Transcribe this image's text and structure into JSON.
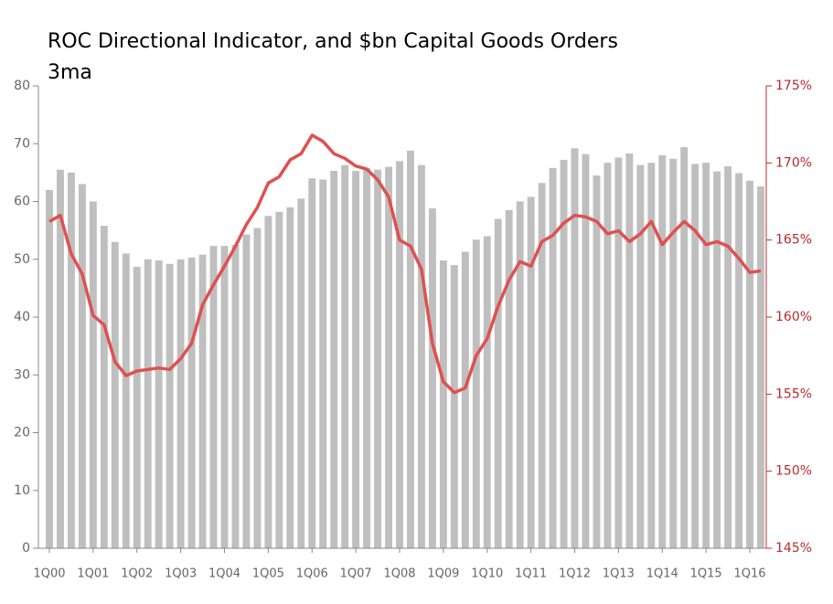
{
  "chart_data": {
    "type": "bar_line",
    "title": "ROC Directional Indicator, and $bn Capital Goods Orders",
    "subtitle": "3ma",
    "categories": [
      "1Q00",
      null,
      null,
      null,
      "1Q01",
      null,
      null,
      null,
      "1Q02",
      null,
      null,
      null,
      "1Q03",
      null,
      null,
      null,
      "1Q04",
      null,
      null,
      null,
      "1Q05",
      null,
      null,
      null,
      "1Q06",
      null,
      null,
      null,
      "1Q07",
      null,
      null,
      null,
      "1Q08",
      null,
      null,
      null,
      "1Q09",
      null,
      null,
      null,
      "1Q10",
      null,
      null,
      null,
      "1Q11",
      null,
      null,
      null,
      "1Q12",
      null,
      null,
      null,
      "1Q13",
      null,
      null,
      null,
      "1Q14",
      null,
      null,
      null,
      "1Q15",
      null,
      null,
      null,
      "1Q16",
      null
    ],
    "series": [
      {
        "type": "bar",
        "color": "#bfbfbf",
        "values": [
          62,
          65.5,
          65,
          63,
          60,
          55.8,
          53,
          51,
          48.7,
          50,
          49.8,
          49.2,
          50,
          50.3,
          50.8,
          52.3,
          52.3,
          52.5,
          54.3,
          55.4,
          57.5,
          58.2,
          59,
          60.5,
          64,
          63.8,
          65.3,
          66.3,
          65.3,
          65.8,
          65.5,
          66,
          67,
          68.8,
          66.3,
          58.8,
          49.8,
          49,
          51.3,
          53.4,
          54,
          57,
          58.5,
          60,
          60.8,
          63.2,
          65.8,
          67.2,
          69.2,
          68.2,
          64.5,
          66.7,
          67.6,
          68.3,
          66.3,
          66.7,
          68,
          67.4,
          69.4,
          66.5,
          66.7,
          65.2,
          66.1,
          64.9,
          63.6,
          62.6
        ]
      },
      {
        "type": "line",
        "axis": "y2",
        "color": "#e05050",
        "values": [
          166.2,
          166.6,
          164.1,
          162.8,
          160.1,
          159.5,
          157.1,
          156.2,
          156.5,
          156.6,
          156.7,
          156.6,
          157.3,
          158.3,
          160.8,
          162.1,
          163.3,
          164.6,
          166.0,
          167.1,
          168.7,
          169.1,
          170.2,
          170.6,
          171.8,
          171.4,
          170.6,
          170.3,
          169.8,
          169.6,
          168.9,
          167.8,
          165.0,
          164.6,
          163.1,
          158.3,
          155.8,
          155.1,
          155.4,
          157.5,
          158.6,
          160.7,
          162.4,
          163.6,
          163.3,
          164.9,
          165.3,
          166.1,
          166.6,
          166.5,
          166.2,
          165.4,
          165.6,
          164.9,
          165.4,
          166.2,
          164.7,
          165.5,
          166.2,
          165.6,
          164.7,
          164.9,
          164.6,
          163.8,
          162.9,
          163.0
        ]
      }
    ],
    "ylim": [
      0,
      80
    ],
    "yticks": [
      0,
      10,
      20,
      30,
      40,
      50,
      60,
      70,
      80
    ],
    "y2lim": [
      145,
      175
    ],
    "y2ticks": [
      {
        "value": 145,
        "label": "145%"
      },
      {
        "value": 150,
        "label": "150%"
      },
      {
        "value": 155,
        "label": "155%"
      },
      {
        "value": 160,
        "label": "160%"
      },
      {
        "value": 165,
        "label": "165%"
      },
      {
        "value": 170,
        "label": "170%"
      },
      {
        "value": 175,
        "label": "175%"
      }
    ],
    "y2color": "#c0282d"
  }
}
